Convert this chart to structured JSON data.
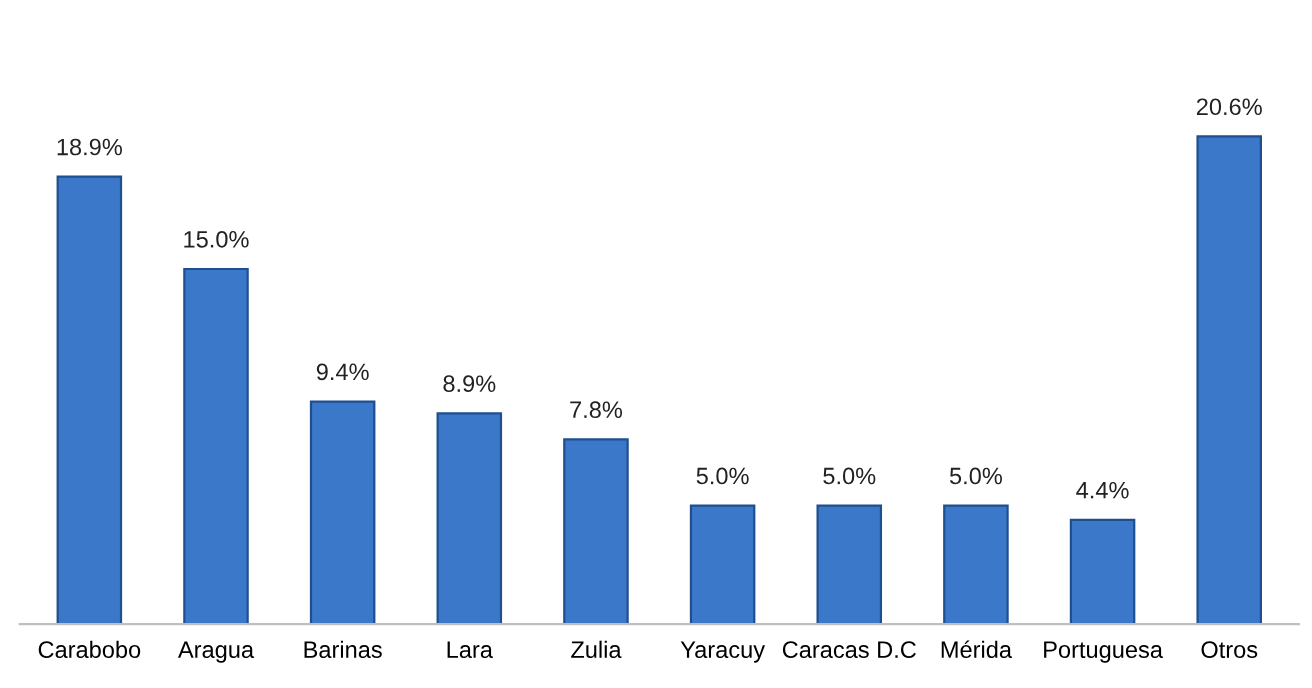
{
  "chart_data": {
    "type": "bar",
    "categories": [
      "Carabobo",
      "Aragua",
      "Barinas",
      "Lara",
      "Zulia",
      "Yaracuy",
      "Caracas D.C",
      "Mérida",
      "Portuguesa",
      "Otros"
    ],
    "values": [
      18.9,
      15.0,
      9.4,
      8.9,
      7.8,
      5.0,
      5.0,
      5.0,
      4.4,
      20.6
    ],
    "value_labels": [
      "18.9%",
      "15.0%",
      "9.4%",
      "8.9%",
      "7.8%",
      "5.0%",
      "5.0%",
      "5.0%",
      "4.4%",
      "20.6%"
    ],
    "color": "#3b78c9",
    "grid": false,
    "legend": false,
    "tick_labels": "x"
  }
}
